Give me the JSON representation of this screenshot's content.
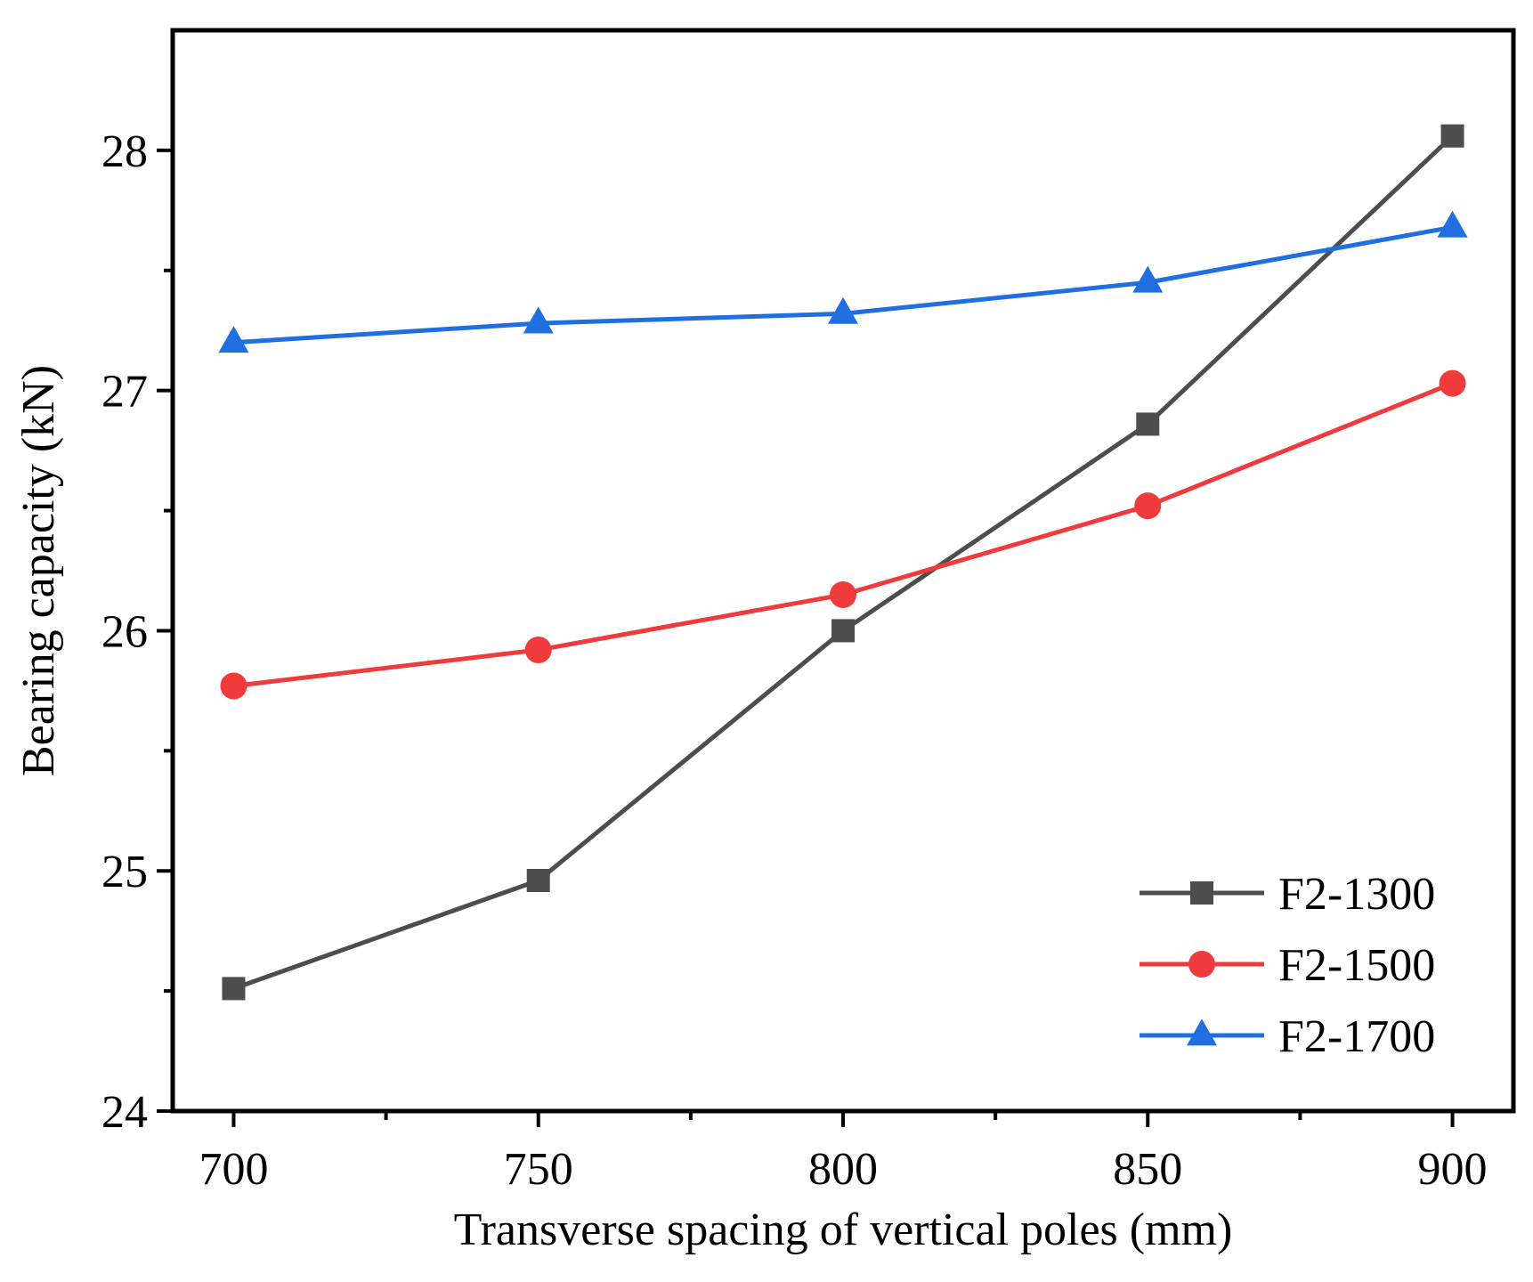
{
  "chart_data": {
    "type": "line",
    "title": "",
    "xlabel": "Transverse spacing of vertical poles (mm)",
    "ylabel": "Bearing capacity (kN)",
    "x": [
      700,
      750,
      800,
      850,
      900
    ],
    "xlim": [
      690,
      910
    ],
    "ylim": [
      24,
      28.5
    ],
    "xticks": [
      700,
      750,
      800,
      850,
      900
    ],
    "xticks_minor": [
      725,
      775,
      825,
      875
    ],
    "yticks": [
      24,
      25,
      26,
      27,
      28
    ],
    "yticks_minor": [
      24.5,
      25.5,
      26.5,
      27.5
    ],
    "grid": false,
    "legend_position": "bottom-right",
    "series": [
      {
        "name": "F2-1300",
        "marker": "square",
        "color": "#4d4d4d",
        "values": [
          24.51,
          24.96,
          26.0,
          26.86,
          28.06
        ]
      },
      {
        "name": "F2-1500",
        "marker": "circle",
        "color": "#ef3b3b",
        "values": [
          25.77,
          25.92,
          26.15,
          26.52,
          27.03
        ]
      },
      {
        "name": "F2-1700",
        "marker": "triangle",
        "color": "#1f6fe0",
        "values": [
          27.2,
          27.28,
          27.32,
          27.45,
          27.68
        ]
      }
    ]
  }
}
